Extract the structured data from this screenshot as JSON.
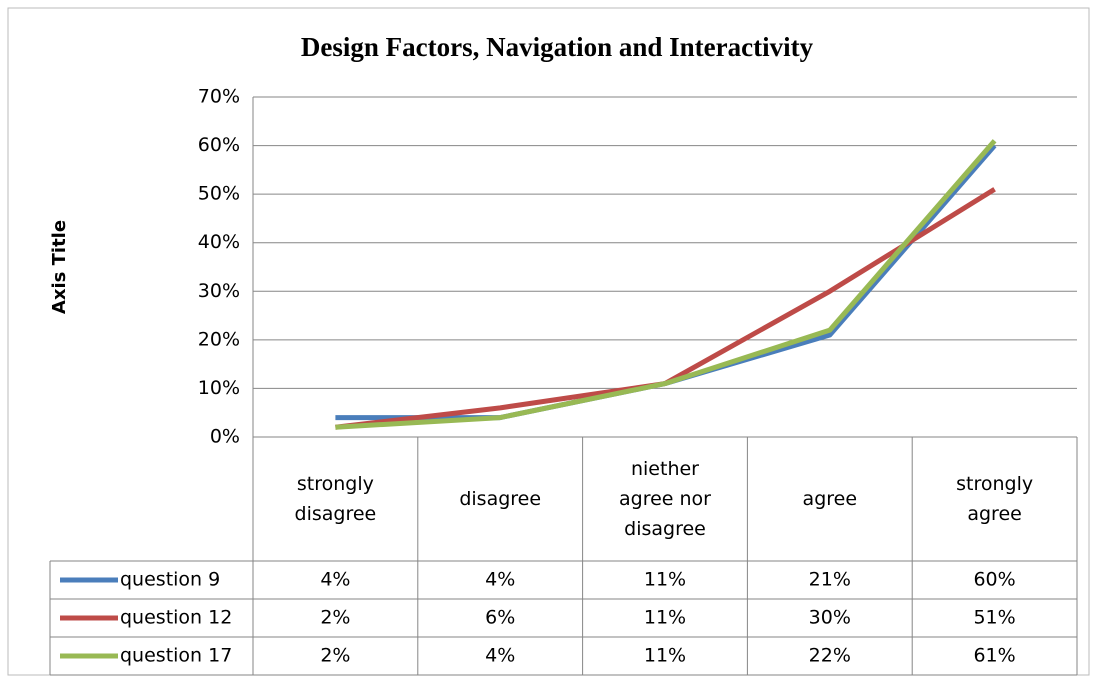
{
  "chart_data": {
    "type": "line",
    "title": "Design Factors, Navigation and Interactivity",
    "y_axis_label": "Axis Title",
    "categories": [
      "strongly disagree",
      "disagree",
      "niether agree nor disagree",
      "agree",
      "strongly agree"
    ],
    "series": [
      {
        "name": "question 9",
        "color": "#4a7ebb",
        "values": [
          4,
          4,
          11,
          21,
          60
        ],
        "value_labels": [
          "4%",
          "4%",
          "11%",
          "21%",
          "60%"
        ]
      },
      {
        "name": "question 12",
        "color": "#be4b48",
        "values": [
          2,
          6,
          11,
          30,
          51
        ],
        "value_labels": [
          "2%",
          "6%",
          "11%",
          "30%",
          "51%"
        ]
      },
      {
        "name": "question 17",
        "color": "#98b954",
        "values": [
          2,
          4,
          11,
          22,
          61
        ],
        "value_labels": [
          "2%",
          "4%",
          "11%",
          "22%",
          "61%"
        ]
      }
    ],
    "ylim": [
      0,
      70
    ],
    "yticks": [
      {
        "value": 0,
        "label": "0%"
      },
      {
        "value": 10,
        "label": "10%"
      },
      {
        "value": 20,
        "label": "20%"
      },
      {
        "value": 30,
        "label": "30%"
      },
      {
        "value": 40,
        "label": "40%"
      },
      {
        "value": 50,
        "label": "50%"
      },
      {
        "value": 60,
        "label": "60%"
      },
      {
        "value": 70,
        "label": "70%"
      }
    ],
    "grid": true,
    "data_table": true
  }
}
